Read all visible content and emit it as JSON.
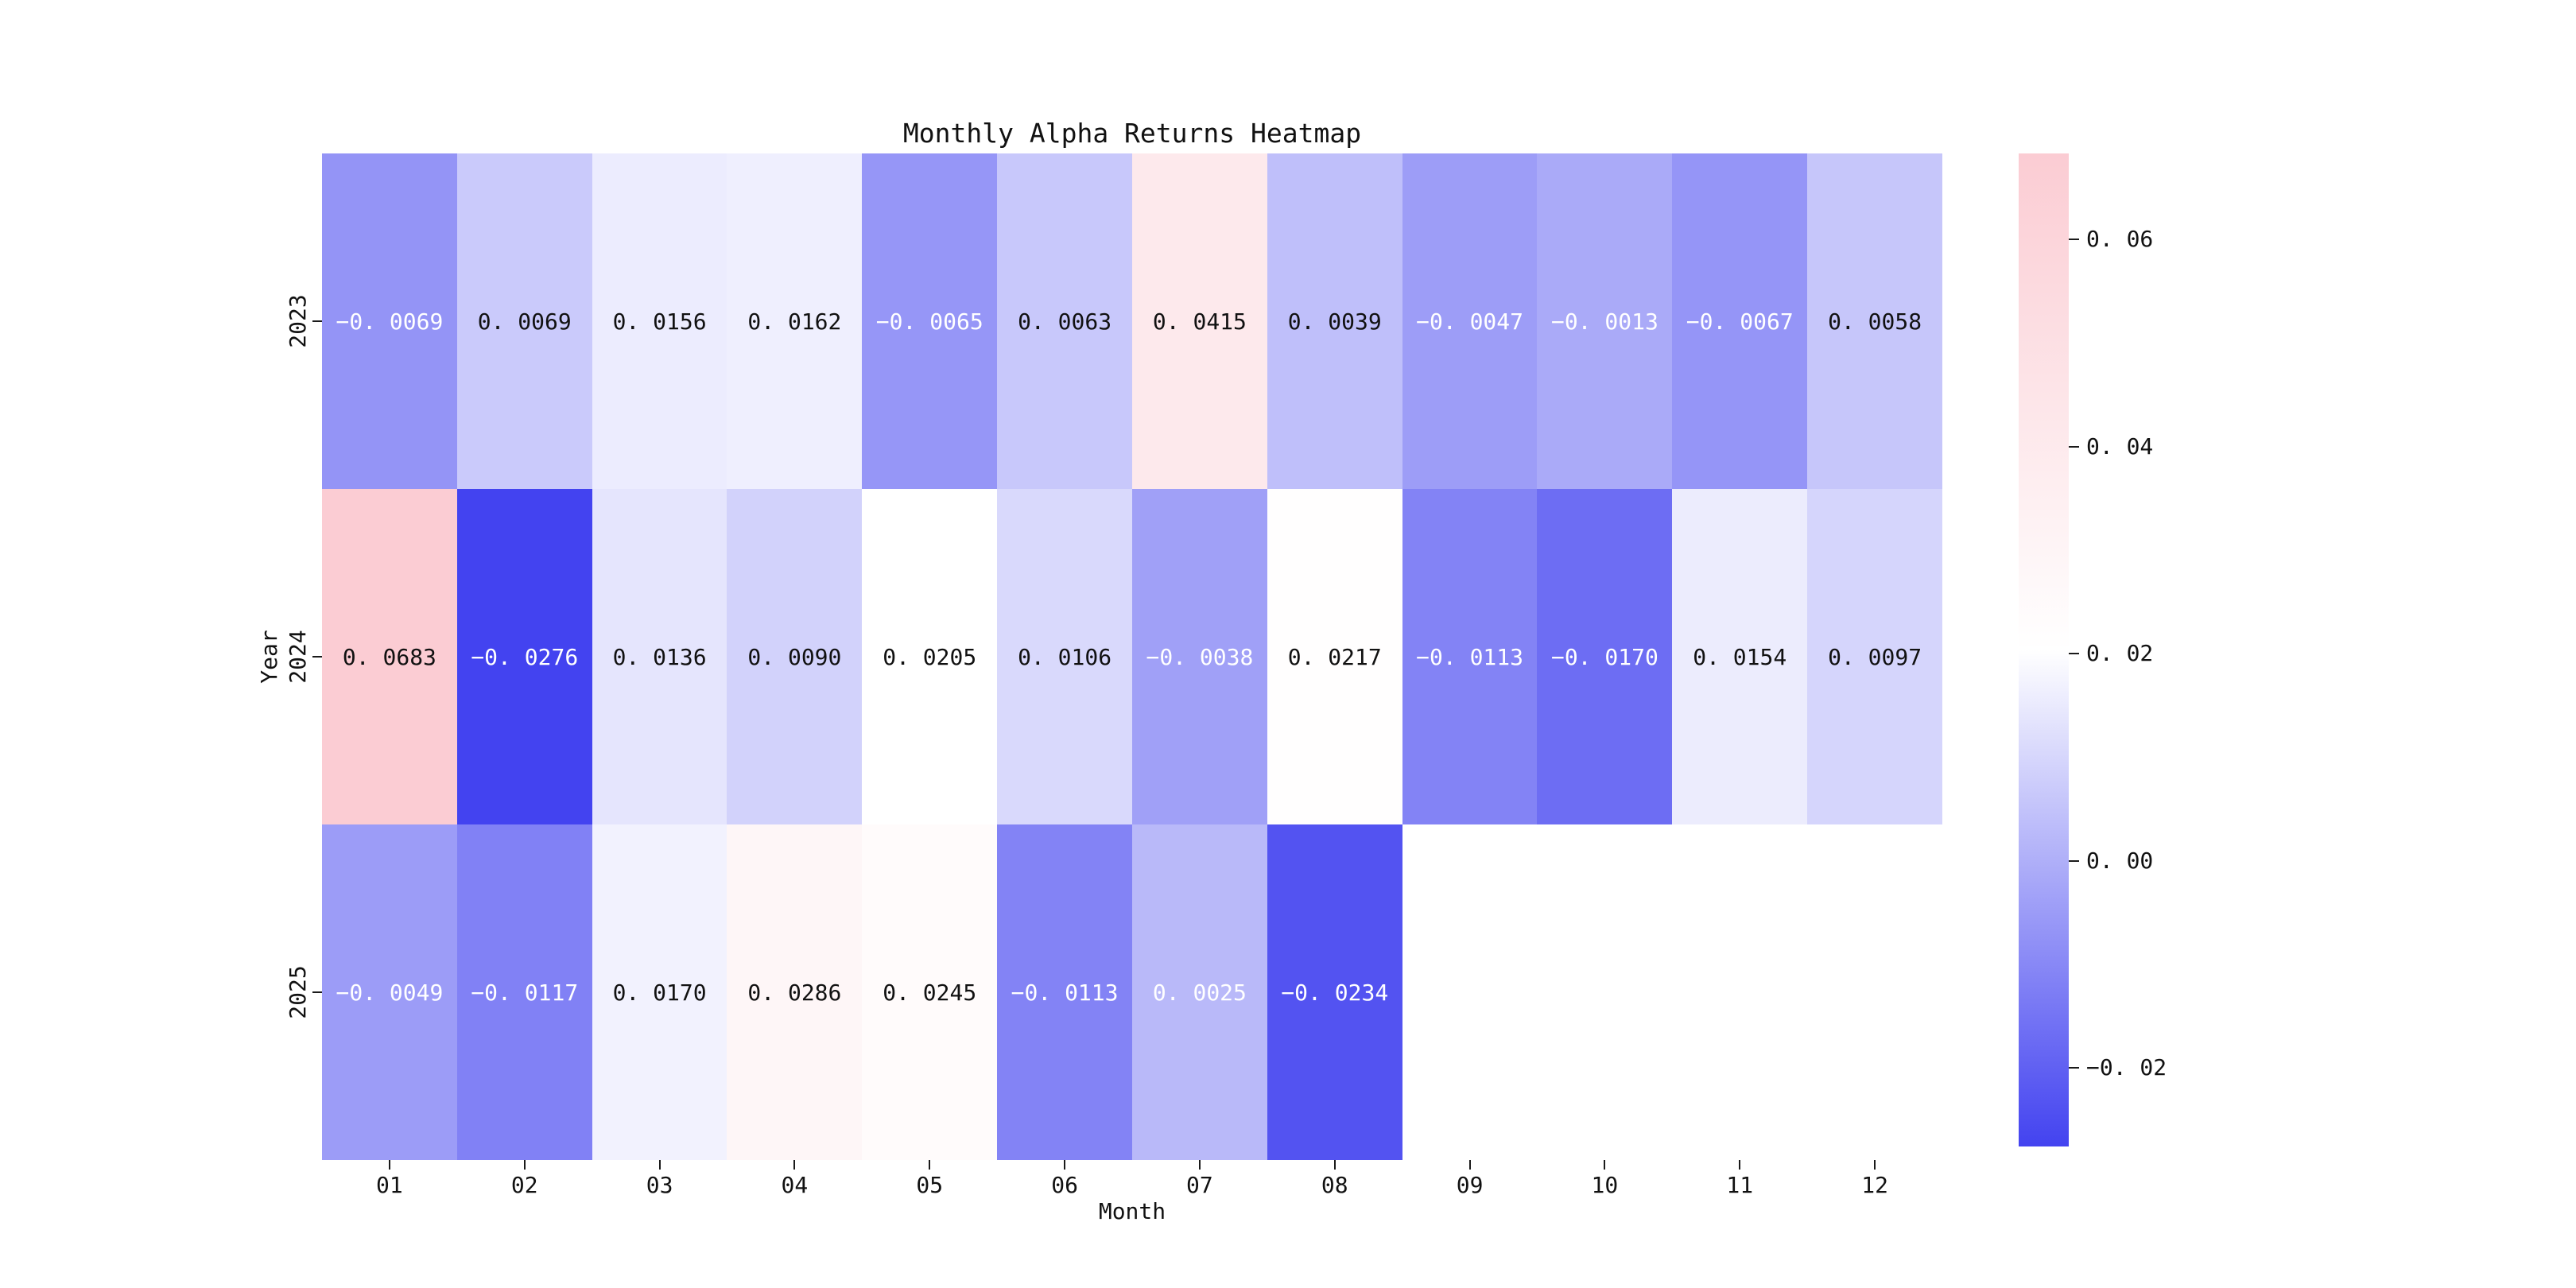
{
  "page": {
    "background": "#ffffff",
    "text_color": "#111111"
  },
  "chart_data": {
    "type": "heatmap",
    "title": "Monthly Alpha Returns Heatmap",
    "xlabel": "Month",
    "ylabel": "Year",
    "x_categories": [
      "01",
      "02",
      "03",
      "04",
      "05",
      "06",
      "07",
      "08",
      "09",
      "10",
      "11",
      "12"
    ],
    "y_categories": [
      "2023",
      "2024",
      "2025"
    ],
    "values": [
      [
        -0.0069,
        0.0069,
        0.0156,
        0.0162,
        -0.0065,
        0.0063,
        0.0415,
        0.0039,
        -0.0047,
        -0.0013,
        -0.0067,
        0.0058
      ],
      [
        0.0683,
        -0.0276,
        0.0136,
        0.009,
        0.0205,
        0.0106,
        -0.0038,
        0.0217,
        -0.0113,
        -0.017,
        0.0154,
        0.0097
      ],
      [
        -0.0049,
        -0.0117,
        0.017,
        0.0286,
        0.0245,
        -0.0113,
        0.0025,
        -0.0234,
        null,
        null,
        null,
        null
      ]
    ],
    "cell_text_colors": [
      [
        "white",
        "black",
        "black",
        "black",
        "white",
        "black",
        "black",
        "black",
        "white",
        "white",
        "white",
        "black"
      ],
      [
        "black",
        "white",
        "black",
        "black",
        "black",
        "black",
        "white",
        "black",
        "white",
        "white",
        "black",
        "black"
      ],
      [
        "white",
        "white",
        "black",
        "black",
        "black",
        "white",
        "white",
        "white",
        null,
        null,
        null,
        null
      ]
    ],
    "value_decimals": 4,
    "colormap": {
      "vmin": -0.0276,
      "vmax": 0.0683,
      "min_color": "#4343f0",
      "mid_color": "#ffffff",
      "max_color": "#fbccd3"
    },
    "colorbar": {
      "position": "right",
      "ticks": [
        0.06,
        0.04,
        0.02,
        0.0,
        -0.02
      ],
      "tick_decimals": 2
    },
    "grid": false,
    "empty_cell_color": "#ffffff"
  }
}
